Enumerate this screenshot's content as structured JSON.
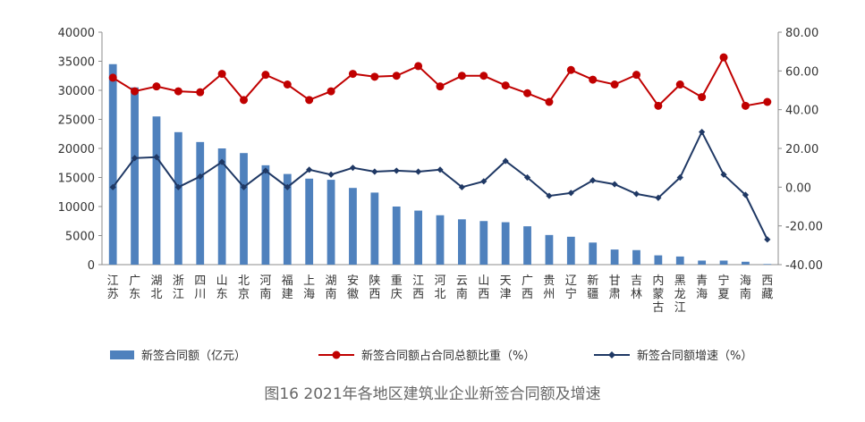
{
  "caption": "图16 2021年各地区建筑业企业新签合同额及增速",
  "colors": {
    "bar": "#4f81bd",
    "ratio": "#c00000",
    "growth": "#1f3864",
    "axis": "#8c8c8c"
  },
  "chart_data": {
    "type": "bar",
    "title": "图16 2021年各地区建筑业企业新签合同额及增速",
    "categories": [
      "江苏",
      "广东",
      "湖北",
      "浙江",
      "四川",
      "山东",
      "北京",
      "河南",
      "福建",
      "上海",
      "湖南",
      "安徽",
      "陕西",
      "重庆",
      "江西",
      "河北",
      "云南",
      "山西",
      "天津",
      "广西",
      "贵州",
      "辽宁",
      "新疆",
      "甘肃",
      "吉林",
      "内蒙古",
      "黑龙江",
      "青海",
      "宁夏",
      "海南",
      "西藏"
    ],
    "series": [
      {
        "name": "新签合同额（亿元）",
        "type": "bar",
        "axis": "left",
        "values": [
          34500,
          30500,
          25500,
          22800,
          21100,
          20000,
          19200,
          17100,
          15600,
          14800,
          14600,
          13200,
          12400,
          10000,
          9300,
          8500,
          7800,
          7500,
          7300,
          6600,
          5100,
          4800,
          3800,
          2600,
          2500,
          1600,
          1400,
          700,
          700,
          500,
          100
        ]
      },
      {
        "name": "新签合同额占合同总额比重（%）",
        "type": "line",
        "axis": "right",
        "values": [
          56.5,
          49.5,
          52.0,
          49.5,
          49.0,
          58.5,
          45.0,
          58.0,
          53.0,
          45.0,
          49.5,
          58.5,
          57.0,
          57.5,
          62.5,
          52.0,
          57.5,
          57.5,
          52.5,
          48.5,
          44.0,
          60.5,
          55.5,
          53.0,
          58.0,
          42.0,
          53.0,
          46.5,
          67.0,
          42.0,
          44.0
        ]
      },
      {
        "name": "新签合同额增速（%）",
        "type": "line",
        "axis": "right",
        "values": [
          0.0,
          15.0,
          15.5,
          0.0,
          5.5,
          13.0,
          0.0,
          8.5,
          0.0,
          9.0,
          6.5,
          10.0,
          8.0,
          8.5,
          8.0,
          9.0,
          0.0,
          3.0,
          13.5,
          5.0,
          -4.5,
          -3.0,
          3.5,
          1.5,
          -3.5,
          -5.5,
          5.0,
          28.5,
          6.5,
          -4.0,
          -27.0
        ]
      }
    ],
    "y_left": {
      "min": 0,
      "max": 40000,
      "step": 5000,
      "ticks": [
        "0",
        "5000",
        "10000",
        "15000",
        "20000",
        "25000",
        "30000",
        "35000",
        "40000"
      ]
    },
    "y_right": {
      "min": -40,
      "max": 80,
      "step": 20,
      "ticks": [
        "-40.00",
        "-20.00",
        "0.00",
        "20.00",
        "40.00",
        "60.00",
        "80.00"
      ]
    },
    "legend_position": "bottom"
  }
}
